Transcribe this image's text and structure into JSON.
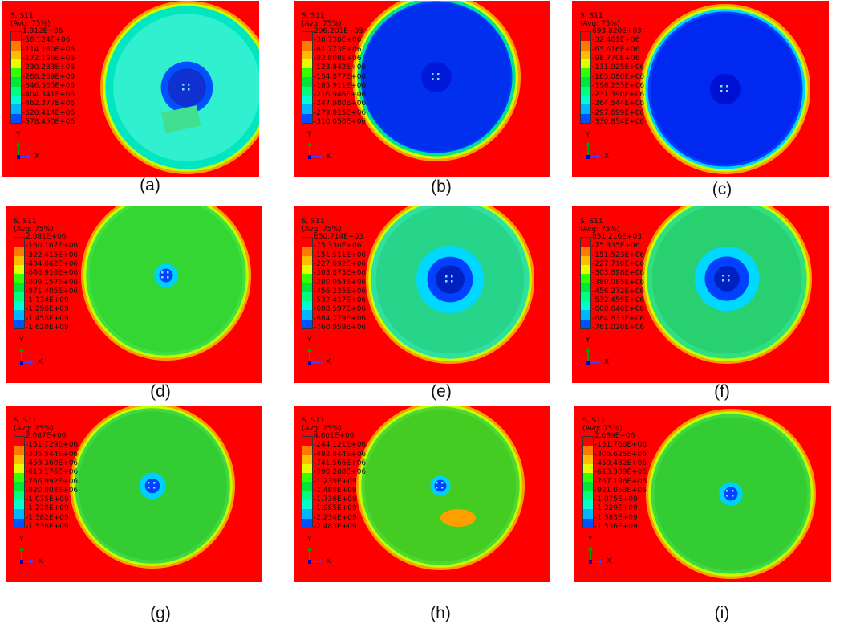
{
  "colors": {
    "background_red": "#ff0000",
    "scale": [
      "#ff0000",
      "#ff7a00",
      "#ffbd00",
      "#e6ff00",
      "#33ff00",
      "#00e63a",
      "#00ff80",
      "#00ffd0",
      "#00b4ff",
      "#0050ff",
      "#0010ff",
      "#0000e6"
    ]
  },
  "panels": [
    {
      "caption": "(a)",
      "header": "S, S11",
      "avg": "(Avg: 75%)",
      "values": [
        "1.912E+06",
        "-56.124E+06",
        "-114.160E+06",
        "-172.196E+06",
        "-230.233E+06",
        "-288.269E+06",
        "-346.305E+06",
        "-404.341E+06",
        "-462.377E+06",
        "-520.414E+06",
        "-578.450E+06"
      ],
      "axis_y": "Y",
      "axis_x": "X"
    },
    {
      "caption": "(b)",
      "header": "S, S11",
      "avg": "(Avg: 75%)",
      "values": [
        "296.201E+03",
        "-30.738E+06",
        "-61.773E+06",
        "-92.808E+06",
        "-123.842E+06",
        "-154.877E+06",
        "-185.911E+06",
        "-216.946E+06",
        "-247.980E+06",
        "-279.015E+06",
        "-310.050E+06"
      ],
      "axis_y": "Y",
      "axis_x": "X"
    },
    {
      "caption": "(c)",
      "header": "S, S11",
      "avg": "(Avg: 75%)",
      "values": [
        "693.820E+03",
        "-32.461E+06",
        "-65.616E+06",
        "-98.770E+06",
        "-131.925E+06",
        "-165.080E+06",
        "-198.235E+06",
        "-231.390E+06",
        "-264.544E+06",
        "-297.699E+06",
        "-330.854E+06"
      ],
      "axis_y": "Y",
      "axis_x": "X"
    },
    {
      "caption": "(d)",
      "header": "S, S11",
      "avg": "(Avg: 75%)",
      "values": [
        "2.081E+06",
        "-160.167E+06",
        "-322.415E+06",
        "-484.662E+06",
        "-646.910E+06",
        "-809.157E+06",
        "-971.405E+06",
        "-1.134E+09",
        "-1.296E+09",
        "-1.458E+09",
        "-1.620E+09"
      ],
      "axis_y": "Y",
      "axis_x": "X"
    },
    {
      "caption": "(e)",
      "header": "S, S11",
      "avg": "(Avg: 75%)",
      "values": [
        "850.714E+03",
        "-75.330E+06",
        "-151.511E+06",
        "-227.692E+06",
        "-303.873E+06",
        "-380.054E+06",
        "-456.235E+06",
        "-532.417E+06",
        "-608.597E+06",
        "-684.779E+06",
        "-760.959E+06"
      ],
      "axis_y": "Y",
      "axis_x": "X"
    },
    {
      "caption": "(f)",
      "header": "S, S11",
      "avg": "(Avg: 75%)",
      "values": [
        "851.216E+03",
        "-75.335E+06",
        "-151.523E+06",
        "-227.710E+06",
        "-303.898E+06",
        "-380.085E+06",
        "-456.272E+06",
        "-532.459E+06",
        "-608.646E+06",
        "-684.833E+06",
        "-761.020E+06"
      ],
      "axis_y": "Y",
      "axis_x": "X"
    },
    {
      "caption": "(g)",
      "header": "S, S11",
      "avg": "(Avg: 75%)",
      "values": [
        "2.087E+06",
        "-151.729E+06",
        "-305.544E+06",
        "-459.360E+06",
        "-613.176E+06",
        "-766.992E+06",
        "-920.808E+06",
        "-1.075E+09",
        "-1.228E+09",
        "-1.382E+09",
        "-1.536E+09"
      ],
      "axis_y": "Y",
      "axis_x": "X"
    },
    {
      "caption": "(h)",
      "header": "S, S11",
      "avg": "(Avg: 75%)",
      "values": [
        "4.601E+06",
        "-244.121E+06",
        "-492.844E+06",
        "-741.566E+06",
        "-990.288E+06",
        "-1.239E+09",
        "-1.488E+09",
        "-1.736E+09",
        "-1.985E+09",
        "-2.234E+09",
        "-2.483E+09"
      ],
      "axis_y": "Y",
      "axis_x": "X"
    },
    {
      "caption": "(i)",
      "header": "S, S11",
      "avg": "(Avg: 75%)",
      "values": [
        "2.089E+06",
        "-151.768E+06",
        "-305.625E+06",
        "-459.482E+06",
        "-613.339E+06",
        "-767.196E+06",
        "-921.053E+06",
        "-1.075E+09",
        "-1.229E+09",
        "-1.383E+09",
        "-1.536E+09"
      ],
      "axis_y": "Y",
      "axis_x": "X"
    }
  ]
}
